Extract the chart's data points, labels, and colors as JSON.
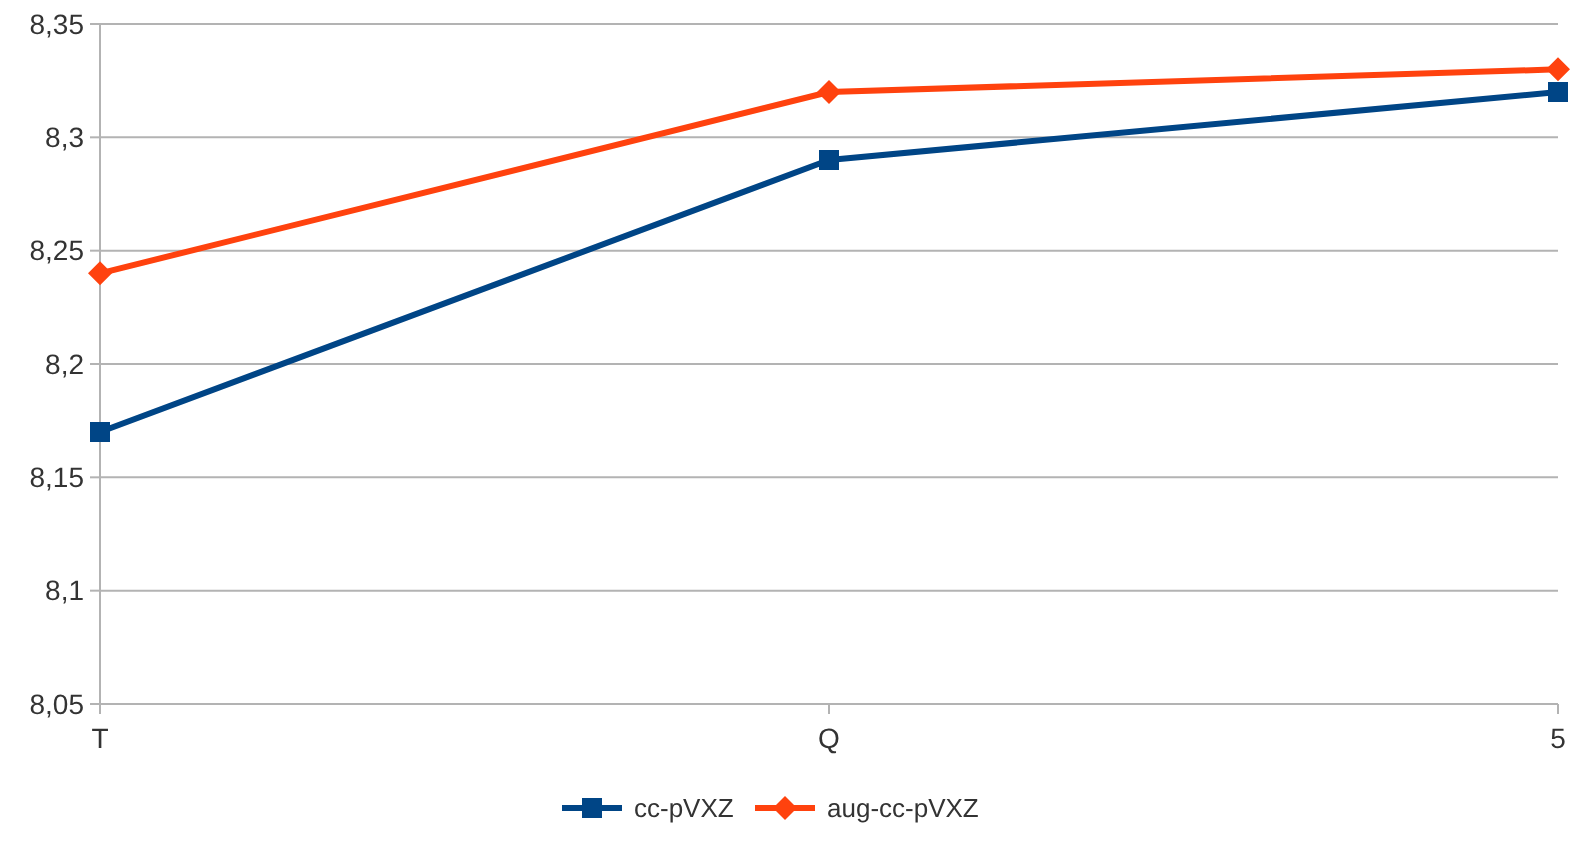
{
  "chart_data": {
    "type": "line",
    "categories": [
      "T",
      "Q",
      "5"
    ],
    "series": [
      {
        "name": "cc-pVXZ",
        "color": "#004586",
        "marker": "square",
        "values": [
          8.17,
          8.29,
          8.32
        ]
      },
      {
        "name": "aug-cc-pVXZ",
        "color": "#ff420e",
        "marker": "diamond",
        "values": [
          8.24,
          8.32,
          8.33
        ]
      }
    ],
    "ylim": [
      8.05,
      8.35
    ],
    "yticks": [
      {
        "value": 8.05,
        "label": "8,05"
      },
      {
        "value": 8.1,
        "label": "8,1"
      },
      {
        "value": 8.15,
        "label": "8,15"
      },
      {
        "value": 8.2,
        "label": "8,2"
      },
      {
        "value": 8.25,
        "label": "8,25"
      },
      {
        "value": 8.3,
        "label": "8,3"
      },
      {
        "value": 8.35,
        "label": "8,35"
      }
    ],
    "grid": "y",
    "legend": "bottom",
    "line_style": "solid"
  }
}
